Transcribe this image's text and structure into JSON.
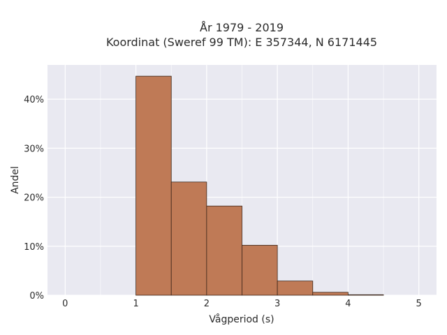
{
  "chart_data": {
    "type": "bar",
    "title_line1": "År 1979 - 2019",
    "title_line2": "Koordinat (Sweref 99 TM): E 357344, N 6171445",
    "xlabel": "Vågperiod (s)",
    "ylabel": "Andel",
    "bin_width": 0.5,
    "bins": [
      {
        "start": 1.0,
        "end": 1.5,
        "value": 44.7
      },
      {
        "start": 1.5,
        "end": 2.0,
        "value": 23.1
      },
      {
        "start": 2.0,
        "end": 2.5,
        "value": 18.2
      },
      {
        "start": 2.5,
        "end": 3.0,
        "value": 10.2
      },
      {
        "start": 3.0,
        "end": 3.5,
        "value": 2.9
      },
      {
        "start": 3.5,
        "end": 4.0,
        "value": 0.6
      },
      {
        "start": 4.0,
        "end": 4.5,
        "value": 0.1
      }
    ],
    "xlim": [
      -0.25,
      5.25
    ],
    "ylim": [
      0,
      47
    ],
    "xticks": [
      0,
      1,
      2,
      3,
      4,
      5
    ],
    "xtick_labels": [
      "0",
      "1",
      "2",
      "3",
      "4",
      "5"
    ],
    "yticks": [
      0,
      10,
      20,
      30,
      40
    ],
    "ytick_labels": [
      "0%",
      "10%",
      "20%",
      "30%",
      "40%"
    ],
    "x_minor_grid": [
      0.5,
      1.5,
      2.5,
      3.5,
      4.5
    ],
    "grid": true,
    "colors": {
      "plot_bg": "#e9e9f1",
      "grid": "#ffffff",
      "bar_fill": "#bf7a56",
      "bar_edge": "#3a2418"
    }
  }
}
